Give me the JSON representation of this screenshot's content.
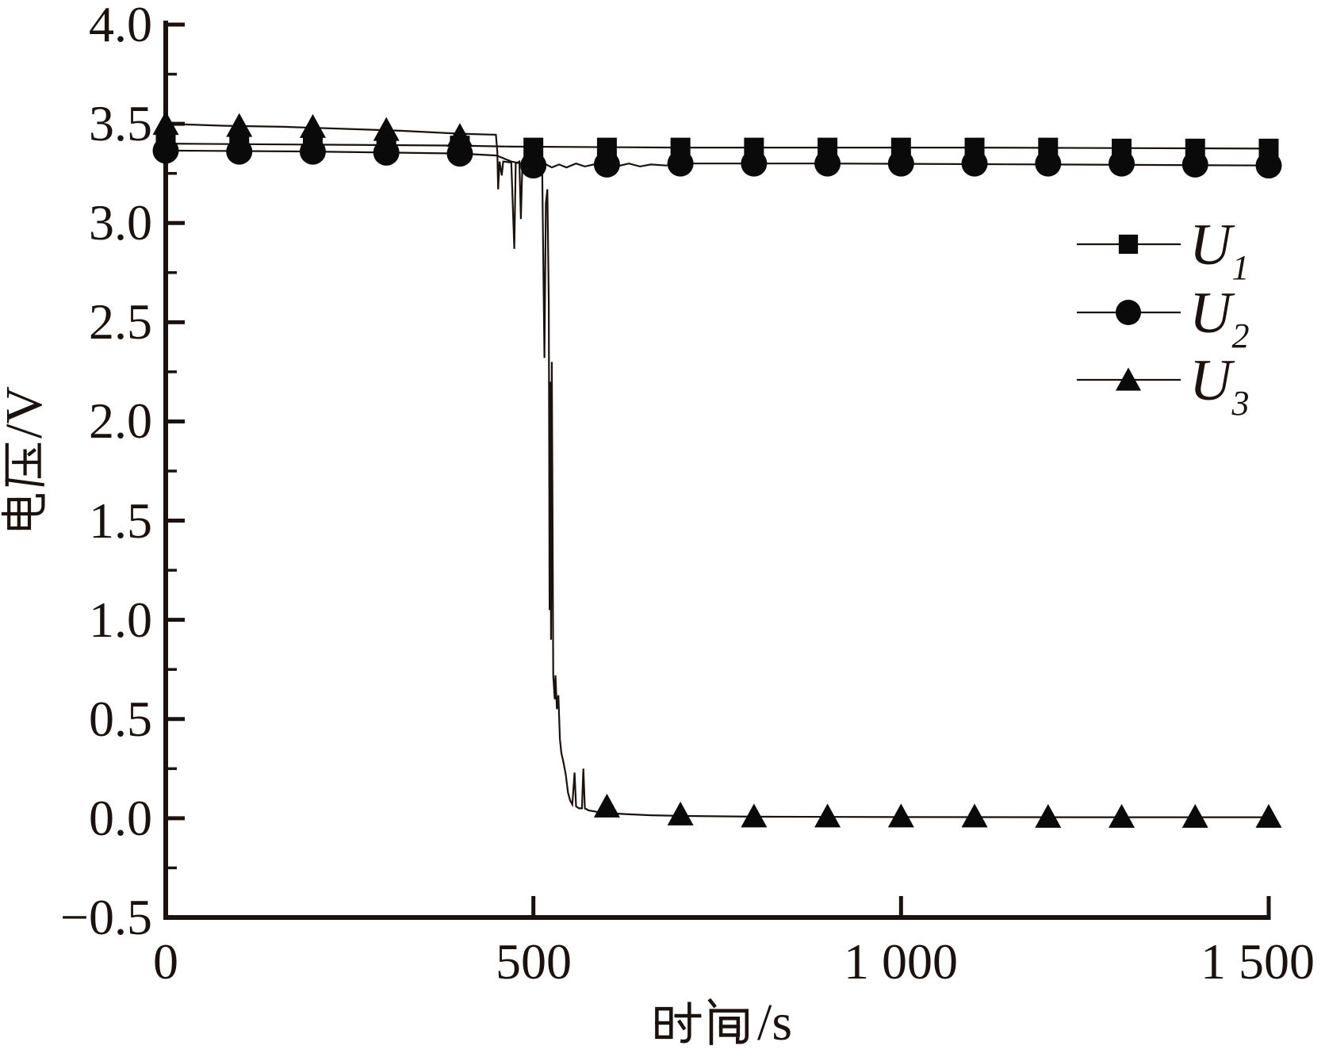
{
  "figure": {
    "background": "#ffffff",
    "ink": "#1a120e",
    "marker_color": "#0a0a0a"
  },
  "y_axis": {
    "label": "电压/V",
    "label_suffix": "/V",
    "ticks": [
      "4.0",
      "3.5",
      "3.0",
      "2.5",
      "2.0",
      "1.5",
      "1.0",
      "0.5",
      "0.0",
      "−0.5"
    ],
    "tick_values": [
      4.0,
      3.5,
      3.0,
      2.5,
      2.0,
      1.5,
      1.0,
      0.5,
      0.0,
      -0.5
    ],
    "minor_step": 0.25,
    "range": [
      -0.5,
      4.0
    ]
  },
  "x_axis": {
    "label": "时间/s",
    "label_suffix": "/s",
    "ticks": [
      "0",
      "500",
      "1 000",
      "1 500"
    ],
    "tick_values": [
      0,
      500,
      1000,
      1500
    ],
    "range": [
      0,
      1500
    ]
  },
  "legend": {
    "position": "upper-right-inside",
    "items": [
      {
        "label": "U",
        "subscript": "1",
        "marker": "square"
      },
      {
        "label": "U",
        "subscript": "2",
        "marker": "circle"
      },
      {
        "label": "U",
        "subscript": "3",
        "marker": "triangle"
      }
    ]
  },
  "chart_data": {
    "type": "line",
    "title": "",
    "xlabel": "时间/s",
    "ylabel": "电压/V",
    "xlim": [
      0,
      1500
    ],
    "ylim": [
      -0.5,
      4.0
    ],
    "x_major_ticks": [
      0,
      500,
      1000,
      1500
    ],
    "y_major_ticks": [
      -0.5,
      0.0,
      0.5,
      1.0,
      1.5,
      2.0,
      2.5,
      3.0,
      3.5,
      4.0
    ],
    "y_minor_step": 0.25,
    "grid": false,
    "legend_position": "upper right",
    "marker_interval_s": 100,
    "series": [
      {
        "name": "U1",
        "marker": "square",
        "x": [
          0,
          100,
          200,
          300,
          400,
          500,
          600,
          700,
          800,
          900,
          1000,
          1100,
          1200,
          1300,
          1400,
          1500
        ],
        "y": [
          3.4,
          3.4,
          3.395,
          3.39,
          3.39,
          3.38,
          3.38,
          3.38,
          3.38,
          3.38,
          3.38,
          3.38,
          3.38,
          3.375,
          3.375,
          3.375
        ],
        "line": [
          [
            0,
            3.4
          ],
          [
            200,
            3.395
          ],
          [
            400,
            3.39
          ],
          [
            470,
            3.385
          ],
          [
            700,
            3.38
          ],
          [
            1100,
            3.38
          ],
          [
            1500,
            3.375
          ]
        ]
      },
      {
        "name": "U2",
        "marker": "circle",
        "x": [
          0,
          100,
          200,
          300,
          400,
          500,
          600,
          700,
          800,
          900,
          1000,
          1100,
          1200,
          1300,
          1400,
          1500
        ],
        "y": [
          3.365,
          3.36,
          3.36,
          3.355,
          3.35,
          3.29,
          3.295,
          3.3,
          3.3,
          3.3,
          3.3,
          3.3,
          3.3,
          3.3,
          3.295,
          3.29
        ],
        "line": [
          [
            0,
            3.365
          ],
          [
            200,
            3.36
          ],
          [
            400,
            3.35
          ],
          [
            450,
            3.34
          ],
          [
            470,
            3.31
          ],
          [
            490,
            3.295
          ],
          [
            505,
            3.285
          ],
          [
            515,
            3.3
          ],
          [
            525,
            3.28
          ],
          [
            535,
            3.295
          ],
          [
            545,
            3.28
          ],
          [
            558,
            3.3
          ],
          [
            570,
            3.285
          ],
          [
            582,
            3.295
          ],
          [
            594,
            3.28
          ],
          [
            606,
            3.3
          ],
          [
            618,
            3.29
          ],
          [
            630,
            3.3
          ],
          [
            645,
            3.285
          ],
          [
            660,
            3.295
          ],
          [
            680,
            3.29
          ],
          [
            700,
            3.3
          ],
          [
            900,
            3.3
          ],
          [
            1200,
            3.295
          ],
          [
            1500,
            3.29
          ]
        ]
      },
      {
        "name": "U3",
        "marker": "triangle",
        "x": [
          0,
          100,
          200,
          300,
          400,
          600,
          700,
          800,
          900,
          1000,
          1100,
          1200,
          1300,
          1400,
          1500
        ],
        "y": [
          3.5,
          3.49,
          3.485,
          3.47,
          3.44,
          0.06,
          0.02,
          0.01,
          0.01,
          0.01,
          0.01,
          0.008,
          0.008,
          0.008,
          0.008
        ],
        "line": [
          [
            0,
            3.5
          ],
          [
            80,
            3.49
          ],
          [
            160,
            3.485
          ],
          [
            240,
            3.475
          ],
          [
            320,
            3.465
          ],
          [
            400,
            3.45
          ],
          [
            449,
            3.445
          ],
          [
            451,
            3.36
          ],
          [
            452,
            3.17
          ],
          [
            454,
            3.31
          ],
          [
            457,
            3.24
          ],
          [
            459,
            3.31
          ],
          [
            470,
            3.305
          ],
          [
            474,
            2.87
          ],
          [
            476,
            3.3
          ],
          [
            481,
            3.31
          ],
          [
            483,
            3.02
          ],
          [
            485,
            3.295
          ],
          [
            495,
            3.29
          ],
          [
            505,
            3.28
          ],
          [
            512,
            3.27
          ],
          [
            515,
            2.32
          ],
          [
            517,
            3.1
          ],
          [
            519,
            3.17
          ],
          [
            521,
            2.6
          ],
          [
            522,
            1.05
          ],
          [
            523,
            2.2
          ],
          [
            524,
            0.9
          ],
          [
            525,
            2.3
          ],
          [
            526,
            1.55
          ],
          [
            527,
            0.72
          ],
          [
            529,
            0.6
          ],
          [
            530,
            0.72
          ],
          [
            532,
            0.55
          ],
          [
            534,
            0.62
          ],
          [
            536,
            0.4
          ],
          [
            538,
            0.33
          ],
          [
            541,
            0.28
          ],
          [
            544,
            0.22
          ],
          [
            547,
            0.13
          ],
          [
            550,
            0.09
          ],
          [
            553,
            0.07
          ],
          [
            556,
            0.23
          ],
          [
            558,
            0.06
          ],
          [
            562,
            0.05
          ],
          [
            566,
            0.05
          ],
          [
            568,
            0.25
          ],
          [
            570,
            0.05
          ],
          [
            575,
            0.04
          ],
          [
            582,
            0.035
          ],
          [
            590,
            0.03
          ],
          [
            605,
            0.025
          ],
          [
            630,
            0.02
          ],
          [
            660,
            0.015
          ],
          [
            700,
            0.012
          ],
          [
            800,
            0.008
          ],
          [
            1000,
            0.006
          ],
          [
            1250,
            0.005
          ],
          [
            1500,
            0.005
          ]
        ]
      }
    ]
  }
}
